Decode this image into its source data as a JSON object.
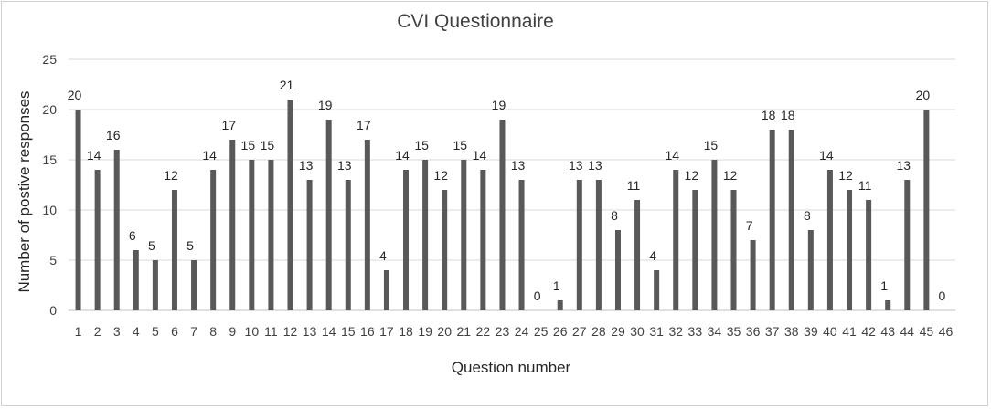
{
  "chart_data": {
    "type": "bar",
    "title": "CVI Questionnaire",
    "xlabel": "Question number",
    "ylabel": "Number  of postive responses",
    "ylim": [
      0,
      25
    ],
    "yticks": [
      "0",
      "5",
      "10",
      "15",
      "20",
      "25"
    ],
    "grid": true,
    "legend": "none",
    "bar_color": "#595959",
    "categories": [
      "1",
      "2",
      "3",
      "4",
      "5",
      "6",
      "7",
      "8",
      "9",
      "10",
      "11",
      "12",
      "13",
      "14",
      "15",
      "16",
      "17",
      "18",
      "19",
      "20",
      "21",
      "22",
      "23",
      "24",
      "25",
      "26",
      "27",
      "28",
      "29",
      "30",
      "31",
      "32",
      "33",
      "34",
      "35",
      "36",
      "37",
      "38",
      "39",
      "40",
      "41",
      "42",
      "43",
      "44",
      "45",
      "46"
    ],
    "values": [
      20,
      14,
      16,
      6,
      5,
      12,
      5,
      14,
      17,
      15,
      15,
      21,
      13,
      19,
      13,
      17,
      4,
      14,
      15,
      12,
      15,
      14,
      19,
      13,
      0,
      1,
      13,
      13,
      8,
      11,
      4,
      14,
      12,
      15,
      12,
      7,
      18,
      18,
      8,
      14,
      12,
      11,
      1,
      13,
      20,
      0
    ]
  }
}
